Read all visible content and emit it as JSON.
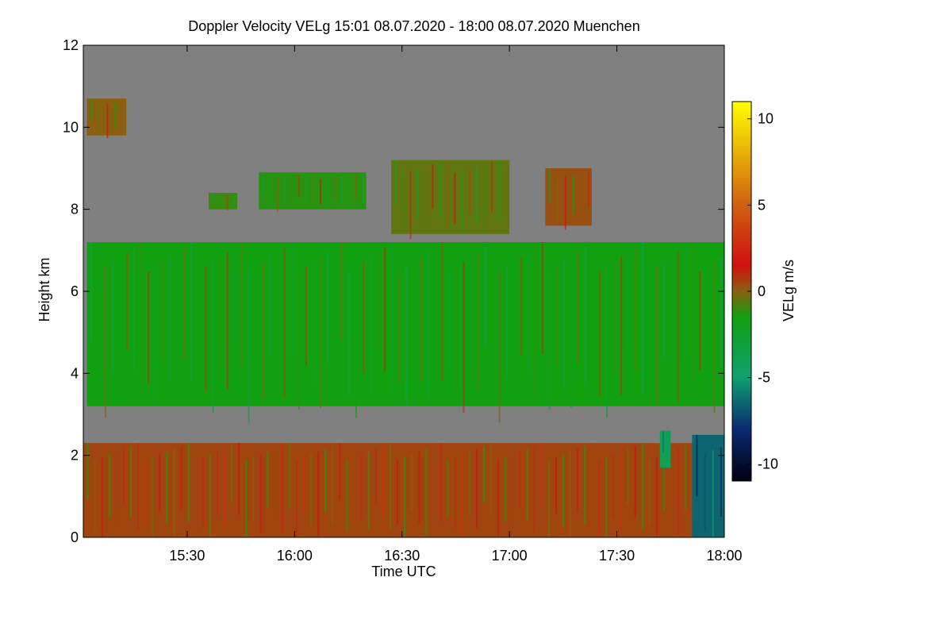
{
  "chart_data": {
    "type": "heatmap",
    "title": "Doppler Velocity VELg   15:01 08.07.2020 - 18:00 08.07.2020 Muenchen",
    "xlabel": "Time UTC",
    "ylabel": "Height km",
    "xlim_minutes_utc": [
      901,
      1080
    ],
    "ylim": [
      0,
      12
    ],
    "x_ticks": [
      {
        "minute": 930,
        "label": "15:30"
      },
      {
        "minute": 960,
        "label": "16:00"
      },
      {
        "minute": 990,
        "label": "16:30"
      },
      {
        "minute": 1020,
        "label": "17:00"
      },
      {
        "minute": 1050,
        "label": "17:30"
      },
      {
        "minute": 1080,
        "label": "18:00"
      }
    ],
    "y_ticks": [
      {
        "value": 0,
        "label": "0"
      },
      {
        "value": 2,
        "label": "2"
      },
      {
        "value": 4,
        "label": "4"
      },
      {
        "value": 6,
        "label": "6"
      },
      {
        "value": 8,
        "label": "8"
      },
      {
        "value": 10,
        "label": "10"
      },
      {
        "value": 12,
        "label": "12"
      }
    ],
    "colorbar": {
      "label": "VELg m/s",
      "range": [
        -11,
        11
      ],
      "ticks": [
        {
          "value": 10,
          "label": "10"
        },
        {
          "value": 5,
          "label": "5"
        },
        {
          "value": 0,
          "label": "0"
        },
        {
          "value": -5,
          "label": "-5"
        },
        {
          "value": -10,
          "label": "-10"
        }
      ],
      "stops": [
        {
          "value": -11,
          "color": "#000010"
        },
        {
          "value": -8,
          "color": "#0a2a70"
        },
        {
          "value": -5,
          "color": "#10a070"
        },
        {
          "value": -1.5,
          "color": "#10a010"
        },
        {
          "value": 0,
          "color": "#8a6010"
        },
        {
          "value": 1.5,
          "color": "#d01010"
        },
        {
          "value": 5,
          "color": "#d06010"
        },
        {
          "value": 11,
          "color": "#ffff00"
        }
      ]
    },
    "background_color": "#808080",
    "regions": [
      {
        "name": "boundary-layer",
        "time_start": 901,
        "time_end": 1072,
        "base_km": 0,
        "top_km": 2.3,
        "velocity_ms": 0.5
      },
      {
        "name": "mid-level-cloud",
        "time_start": 902,
        "time_end": 1080,
        "base_km": 3.2,
        "top_km": 7.2,
        "velocity_ms": -1.5
      },
      {
        "name": "cirrus-layer-1",
        "time_start": 902,
        "time_end": 913,
        "base_km": 9.8,
        "top_km": 10.7,
        "velocity_ms": 0.0
      },
      {
        "name": "cirrus-layer-2",
        "time_start": 936,
        "time_end": 944,
        "base_km": 8.0,
        "top_km": 8.4,
        "velocity_ms": -1.0
      },
      {
        "name": "cirrus-layer-3",
        "time_start": 950,
        "time_end": 980,
        "base_km": 8.0,
        "top_km": 8.9,
        "velocity_ms": -1.2
      },
      {
        "name": "cirrus-layer-4",
        "time_start": 987,
        "time_end": 1020,
        "base_km": 7.4,
        "top_km": 9.2,
        "velocity_ms": -0.5
      },
      {
        "name": "cirrus-layer-5",
        "time_start": 1030,
        "time_end": 1043,
        "base_km": 7.6,
        "top_km": 9.0,
        "velocity_ms": 0.3
      },
      {
        "name": "precip-fallstreak",
        "time_start": 1071,
        "time_end": 1080,
        "base_km": 0,
        "top_km": 2.5,
        "velocity_ms": -6.5
      },
      {
        "name": "precip-fallstreak-2",
        "time_start": 1062,
        "time_end": 1065,
        "base_km": 1.7,
        "top_km": 2.6,
        "velocity_ms": -4.0
      }
    ]
  }
}
